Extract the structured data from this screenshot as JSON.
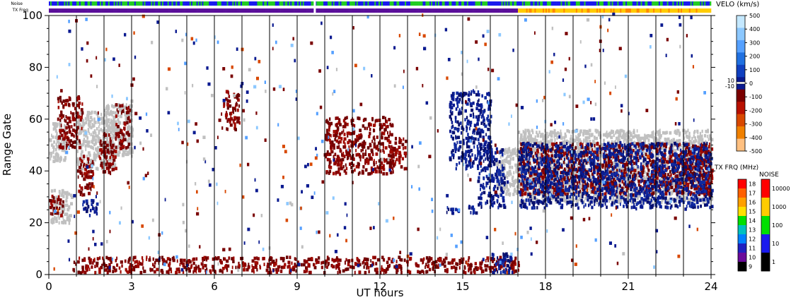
{
  "chart_data": {
    "type": "heatmap",
    "title": "",
    "xlabel": "UT hours",
    "ylabel": "Range Gate",
    "xlim": [
      0,
      24
    ],
    "ylim": [
      0,
      100
    ],
    "x_ticks": [
      "0",
      "3",
      "6",
      "9",
      "12",
      "15",
      "18",
      "21",
      "24"
    ],
    "y_ticks": [
      "0",
      "20",
      "40",
      "60",
      "80",
      "100"
    ],
    "grid_x_every_hours": 1,
    "top_strips": {
      "noise_label": "Noise",
      "txfreq_label": "TX Freq",
      "noise_segments": [
        {
          "start": 0,
          "end": 17,
          "color": "#22cc22",
          "alt_color": "#1a1aee"
        },
        {
          "start": 17,
          "end": 24,
          "color": "#1a1aee",
          "alt_color": "#22cc22"
        }
      ],
      "txfreq_segments": [
        {
          "start": 0,
          "end": 17,
          "color": "#5a0f9a"
        },
        {
          "start": 17,
          "end": 24,
          "color": "#ffcc00",
          "alt_color": "#ff8800"
        }
      ],
      "gap_hours": [
        9.55,
        10.0
      ]
    },
    "velocity_scale": {
      "label": "VELO (km/s)",
      "ticks": [
        "500",
        "400",
        "300",
        "200",
        "100",
        "0",
        "-100",
        "-200",
        "-300",
        "-400",
        "-500"
      ],
      "side_ticks": [
        "10",
        "-10"
      ],
      "colors": [
        "#c4e8ff",
        "#8cc8ff",
        "#55a0ff",
        "#2070e0",
        "#1040c0",
        "#0a1a90",
        "#7a0000",
        "#b81000",
        "#d84800",
        "#f08000",
        "#ffc080"
      ]
    },
    "txfreq_scale": {
      "label": "TX FRQ (MHz)",
      "ticks": [
        "18",
        "17",
        "16",
        "15",
        "14",
        "13",
        "12",
        "11",
        "10",
        "9"
      ],
      "colors": [
        "#ff0000",
        "#ff6000",
        "#ffa000",
        "#ffe000",
        "#00e000",
        "#00c0c0",
        "#0080ff",
        "#2020c0",
        "#6a0a9a",
        "#000000"
      ]
    },
    "noise_scale": {
      "label": "NOISE",
      "ticks": [
        "10000",
        "1000",
        "100",
        "10",
        "1"
      ],
      "colors": [
        "#ff0000",
        "#ffcc00",
        "#00e000",
        "#1a1aee",
        "#000000"
      ]
    },
    "series": [
      {
        "kind": "ground_scatter",
        "color": "#c0c0c0",
        "regions": [
          {
            "x0": 0.05,
            "x1": 0.8,
            "y0": 19,
            "y1": 32
          },
          {
            "x0": 0.0,
            "x1": 0.6,
            "y0": 43,
            "y1": 58
          },
          {
            "x0": 1.0,
            "x1": 2.4,
            "y0": 40,
            "y1": 62
          },
          {
            "x0": 2.0,
            "x1": 3.0,
            "y0": 45,
            "y1": 65
          },
          {
            "x0": 17.0,
            "x1": 24.0,
            "y0": 27,
            "y1": 55
          },
          {
            "x0": 16.2,
            "x1": 17.0,
            "y0": 30,
            "y1": 48
          }
        ]
      },
      {
        "kind": "negative_velocity",
        "color": "#7a0000",
        "regions": [
          {
            "x0": 0.0,
            "x1": 0.5,
            "y0": 22,
            "y1": 30
          },
          {
            "x0": 0.3,
            "x1": 1.2,
            "y0": 48,
            "y1": 68
          },
          {
            "x0": 1.0,
            "x1": 1.6,
            "y0": 30,
            "y1": 45
          },
          {
            "x0": 1.8,
            "x1": 2.4,
            "y0": 38,
            "y1": 55
          },
          {
            "x0": 2.4,
            "x1": 2.9,
            "y0": 48,
            "y1": 65
          },
          {
            "x0": 6.3,
            "x1": 6.9,
            "y0": 55,
            "y1": 70
          },
          {
            "x0": 10.0,
            "x1": 12.5,
            "y0": 38,
            "y1": 60
          },
          {
            "x0": 12.3,
            "x1": 12.9,
            "y0": 40,
            "y1": 52
          },
          {
            "x0": 0.8,
            "x1": 17.0,
            "y0": 0,
            "y1": 6
          },
          {
            "x0": 17.0,
            "x1": 24.0,
            "y0": 30,
            "y1": 50
          },
          {
            "x0": 23.0,
            "x1": 24.0,
            "y0": 30,
            "y1": 45
          }
        ]
      },
      {
        "kind": "positive_velocity",
        "color": "#0a1a90",
        "regions": [
          {
            "x0": 1.2,
            "x1": 1.8,
            "y0": 22,
            "y1": 28
          },
          {
            "x0": 14.4,
            "x1": 15.5,
            "y0": 23,
            "y1": 26
          },
          {
            "x0": 15.5,
            "x1": 16.5,
            "y0": 25,
            "y1": 48
          },
          {
            "x0": 14.5,
            "x1": 16.0,
            "y0": 40,
            "y1": 70
          },
          {
            "x0": 16.0,
            "x1": 16.8,
            "y0": 0,
            "y1": 8
          },
          {
            "x0": 17.0,
            "x1": 24.0,
            "y0": 25,
            "y1": 50
          }
        ]
      },
      {
        "kind": "scattered_noise",
        "color": "mixed",
        "regions": [
          {
            "x0": 0,
            "x1": 24,
            "y0": 0,
            "y1": 100
          }
        ]
      }
    ]
  }
}
